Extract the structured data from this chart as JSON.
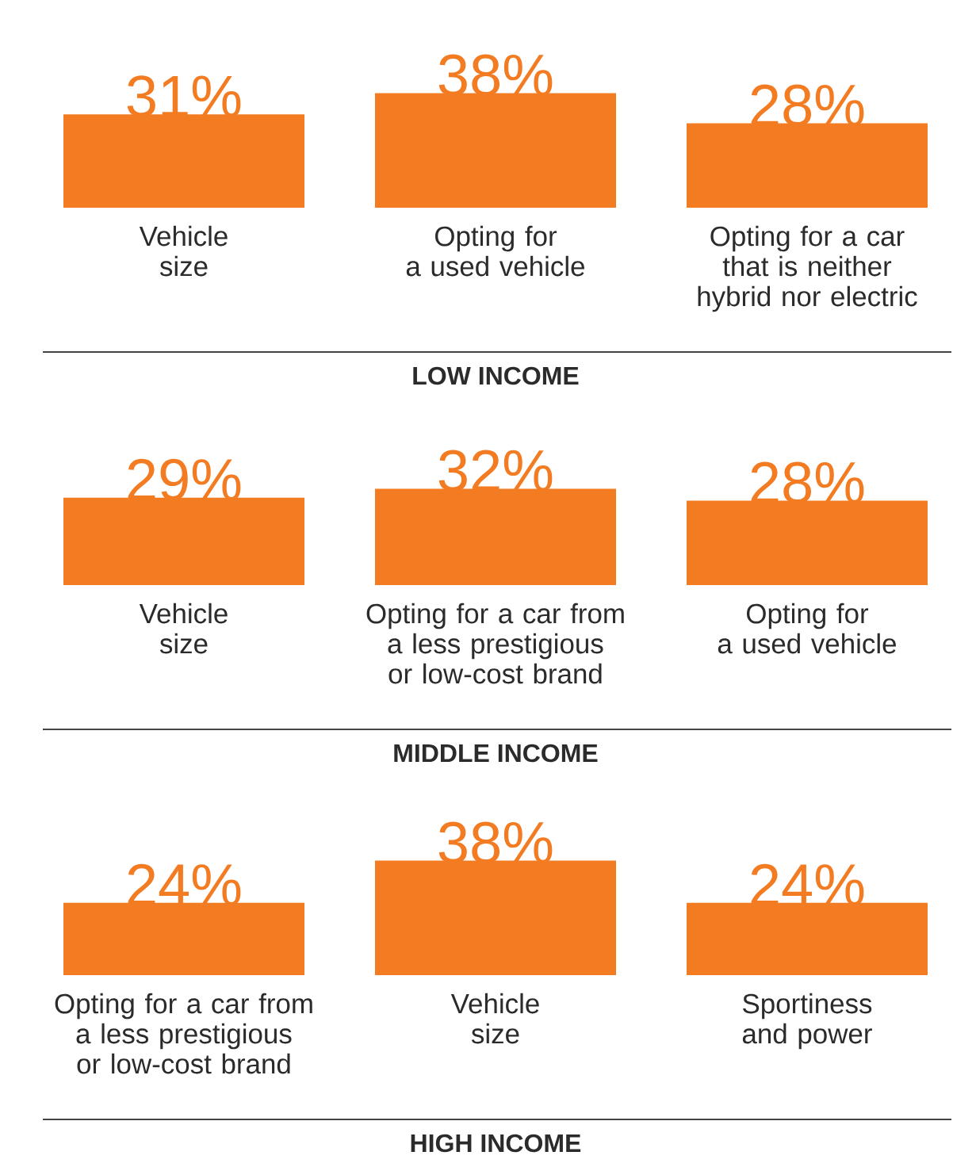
{
  "chart_data": [
    {
      "type": "bar",
      "xlabel": "LOW INCOME",
      "categories": [
        "Vehicle\nsize",
        "Opting for\na used vehicle",
        "Opting for a car\nthat is neither\nhybrid nor electric"
      ],
      "values": [
        31,
        38,
        28
      ],
      "value_labels": [
        "31%",
        "38%",
        "28%"
      ],
      "color": "#f37c22"
    },
    {
      "type": "bar",
      "xlabel": "MIDDLE INCOME",
      "categories": [
        "Vehicle\nsize",
        "Opting for a car from\na less prestigious\nor low-cost brand",
        "Opting for\na used vehicle"
      ],
      "values": [
        29,
        32,
        28
      ],
      "value_labels": [
        "29%",
        "32%",
        "28%"
      ],
      "color": "#f37c22"
    },
    {
      "type": "bar",
      "xlabel": "HIGH INCOME",
      "categories": [
        "Opting for a car from\na less prestigious\nor low-cost brand",
        "Vehicle\nsize",
        "Sportiness\nand power"
      ],
      "values": [
        24,
        38,
        24
      ],
      "value_labels": [
        "24%",
        "38%",
        "24%"
      ],
      "color": "#f37c22"
    }
  ]
}
